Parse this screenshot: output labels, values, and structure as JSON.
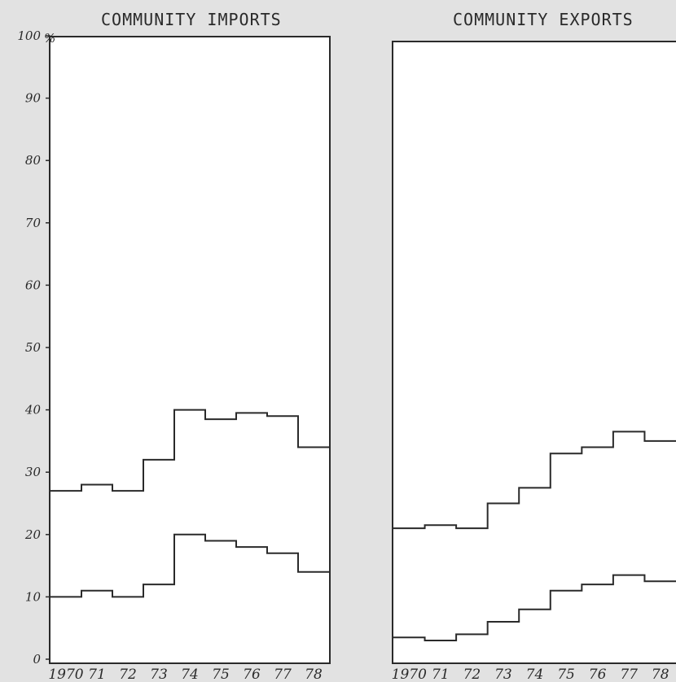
{
  "chart_data": [
    {
      "type": "line",
      "step": true,
      "title": "COMMUNITY IMPORTS",
      "ylabel": "%",
      "ylim": [
        0,
        100
      ],
      "yticks": [
        0,
        10,
        20,
        30,
        40,
        50,
        60,
        70,
        80,
        90,
        100
      ],
      "yticklabels": [
        "0",
        "10",
        "20",
        "30",
        "40",
        "50",
        "60",
        "70",
        "80",
        "90",
        "100"
      ],
      "categories": [
        "1970",
        "71",
        "72",
        "73",
        "74",
        "75",
        "76",
        "77",
        "78"
      ],
      "series": [
        {
          "values": [
            27,
            28,
            27,
            32,
            40,
            38.5,
            39.5,
            39,
            34
          ]
        },
        {
          "values": [
            10,
            11,
            10,
            12,
            20,
            19,
            18,
            17,
            14
          ]
        }
      ]
    },
    {
      "type": "line",
      "step": true,
      "title": "COMMUNITY EXPORTS",
      "ylim": [
        0,
        100
      ],
      "categories": [
        "1970",
        "71",
        "72",
        "73",
        "74",
        "75",
        "76",
        "77",
        "78"
      ],
      "series": [
        {
          "values": [
            21,
            21.5,
            21,
            25,
            27.5,
            33,
            34,
            36.5,
            35
          ]
        },
        {
          "values": [
            3.5,
            3,
            4,
            6,
            8,
            11,
            12,
            13.5,
            12.5
          ]
        }
      ]
    }
  ],
  "colors": {
    "ink": "#2a2a2a",
    "panel": "#ffffff",
    "background": "#e2e2e2"
  }
}
